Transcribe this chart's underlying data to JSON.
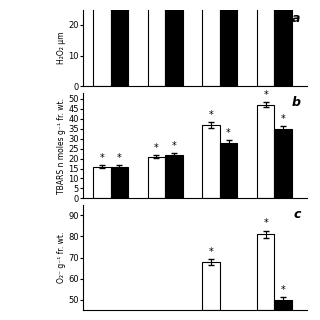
{
  "panel_a": {
    "ylabel": "H₂O₂ μm",
    "yticks": [
      0,
      10,
      20
    ],
    "ylim": [
      0,
      25
    ],
    "white_bars": [
      30,
      30,
      30,
      30
    ],
    "black_bars": [
      30,
      30,
      30,
      30
    ],
    "white_errors": [
      0,
      0,
      0,
      0
    ],
    "black_errors": [
      0,
      0,
      0,
      0
    ],
    "white_stars": [
      false,
      false,
      false,
      false
    ],
    "black_stars": [
      false,
      false,
      false,
      false
    ],
    "label": "a"
  },
  "panel_b": {
    "ylabel": "TBARS n moles g⁻¹ fr. wt.",
    "yticks": [
      0,
      5,
      10,
      15,
      20,
      25,
      30,
      35,
      40,
      45,
      50
    ],
    "ylim": [
      0,
      53
    ],
    "white_bars": [
      16,
      21,
      37,
      47
    ],
    "black_bars": [
      16,
      22,
      28,
      35
    ],
    "white_errors": [
      0.6,
      0.8,
      1.5,
      1.2
    ],
    "black_errors": [
      0.6,
      0.8,
      1.2,
      1.5
    ],
    "white_stars": [
      true,
      true,
      true,
      true
    ],
    "black_stars": [
      true,
      true,
      true,
      true
    ],
    "label": "b"
  },
  "panel_c": {
    "ylabel": "O₂⁻ g⁻¹ fr. wt.",
    "yticks": [
      50,
      60,
      70,
      80,
      90
    ],
    "ylim": [
      45,
      95
    ],
    "white_bars": [
      0,
      0,
      68,
      81
    ],
    "black_bars": [
      0,
      0,
      0,
      50
    ],
    "white_errors": [
      0,
      0,
      1.5,
      1.8
    ],
    "black_errors": [
      0,
      0,
      0,
      1.2
    ],
    "white_stars": [
      false,
      false,
      true,
      true
    ],
    "black_stars": [
      false,
      false,
      false,
      true
    ],
    "label": "c"
  },
  "bar_width": 0.32,
  "group_positions": [
    1,
    2,
    3,
    4
  ],
  "white_color": "#ffffff",
  "black_color": "#000000",
  "edge_color": "#000000",
  "background_color": "#ffffff"
}
